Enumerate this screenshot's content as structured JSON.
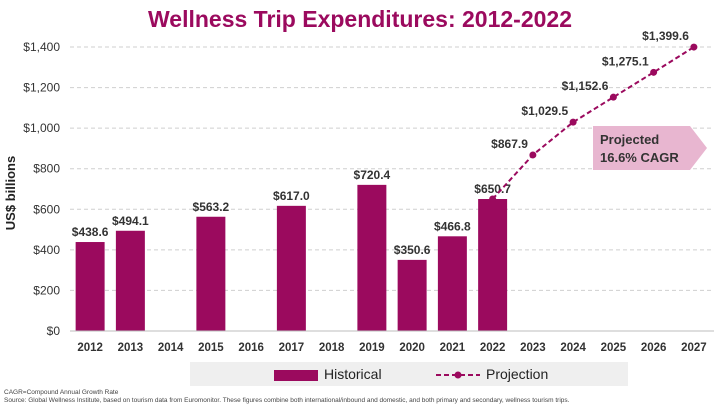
{
  "chart_data": {
    "type": "bar",
    "title": "Wellness Trip Expenditures: 2012-2022",
    "ylabel": "US$ billions",
    "ylim": [
      0,
      1400
    ],
    "yticks": [
      "$0",
      "$200",
      "$400",
      "$600",
      "$800",
      "$1,000",
      "$1,200",
      "$1,400"
    ],
    "ytick_values": [
      0,
      200,
      400,
      600,
      800,
      1000,
      1200,
      1400
    ],
    "grid": true,
    "categories": [
      "2012",
      "2013",
      "2014",
      "2015",
      "2016",
      "2017",
      "2018",
      "2019",
      "2020",
      "2021",
      "2022",
      "2023",
      "2024",
      "2025",
      "2026",
      "2027"
    ],
    "series": [
      {
        "name": "Historical",
        "type": "bar",
        "color": "#9b0a5e",
        "points": [
          {
            "x": "2012",
            "y": 438.6,
            "label": "$438.6"
          },
          {
            "x": "2013",
            "y": 494.1,
            "label": "$494.1"
          },
          {
            "x": "2015",
            "y": 563.2,
            "label": "$563.2"
          },
          {
            "x": "2017",
            "y": 617.0,
            "label": "$617.0"
          },
          {
            "x": "2019",
            "y": 720.4,
            "label": "$720.4"
          },
          {
            "x": "2020",
            "y": 350.6,
            "label": "$350.6"
          },
          {
            "x": "2021",
            "y": 466.8,
            "label": "$466.8"
          },
          {
            "x": "2022",
            "y": 650.7,
            "label": "$650.7"
          }
        ]
      },
      {
        "name": "Projection",
        "type": "line",
        "color": "#9b0a5e",
        "points": [
          {
            "x": "2022",
            "y": 650.7,
            "label": ""
          },
          {
            "x": "2023",
            "y": 867.9,
            "label": "$867.9"
          },
          {
            "x": "2024",
            "y": 1029.5,
            "label": "$1,029.5"
          },
          {
            "x": "2025",
            "y": 1152.6,
            "label": "$1,152.6"
          },
          {
            "x": "2026",
            "y": 1275.1,
            "label": "$1,275.1"
          },
          {
            "x": "2027",
            "y": 1399.6,
            "label": "$1,399.6"
          }
        ]
      }
    ],
    "annotation": {
      "line1": "Projected",
      "line2": "16.6% CAGR",
      "color": "#e8b6d0"
    },
    "legend": {
      "placement": "bottom",
      "historical": "Historical",
      "projection": "Projection"
    }
  },
  "footnotes": {
    "cagr": "CAGR=Compound Annual Growth Rate",
    "source": "Source: Global Wellness Institute, based on tourism data from Euromonitor. These figures combine both international/inbound and domestic, and both primary and secondary, wellness tourism trips."
  }
}
